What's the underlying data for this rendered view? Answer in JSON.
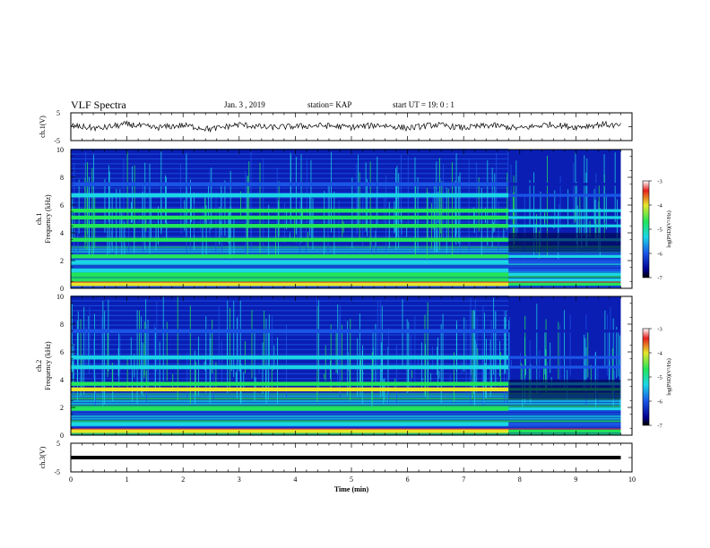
{
  "header": {
    "title": "VLF Spectra",
    "date": "Jan. 3 , 2019",
    "station": "station= KAP",
    "start": "start UT = 19: 0 : 1"
  },
  "chart_data": [
    {
      "type": "line",
      "panel": "ch1-waveform",
      "ylabel": "ch.1(V)",
      "ylim": [
        -5,
        5
      ],
      "yticks": [
        "5",
        "-5"
      ],
      "x": [
        0,
        0.5,
        1,
        1.5,
        2,
        2.5,
        3,
        3.5,
        4,
        4.5,
        5,
        5.5,
        6,
        6.5,
        7,
        7.5,
        8,
        8.5,
        9,
        9.5,
        9.8
      ],
      "values": [
        0.3,
        -0.6,
        0.9,
        -0.4,
        0.5,
        -0.9,
        0.8,
        -0.3,
        0.1,
        0.4,
        -0.2,
        0.6,
        -0.5,
        0.7,
        -0.4,
        0.5,
        -0.6,
        0.8,
        -0.1,
        0.9,
        0.2
      ]
    },
    {
      "type": "heatmap",
      "panel": "ch1-spectrogram",
      "ylabel": "ch.1 Frequency (kHz)",
      "ylim": [
        0,
        10
      ],
      "yticks": [
        "0",
        "2",
        "4",
        "6",
        "8",
        "10"
      ],
      "xlim": [
        0,
        10
      ],
      "data_end_min": 9.8,
      "change_at_min": 7.8,
      "colorbar": {
        "label": "log(PSD)(V²/Hz)",
        "range": [
          -7,
          -3
        ],
        "ticks": [
          "-3",
          "-4",
          "-5",
          "-6",
          "-7"
        ]
      },
      "bands_khz": [
        {
          "f": 0.3,
          "level": -3.6
        },
        {
          "f": 0.6,
          "level": -4.2
        },
        {
          "f": 1.0,
          "level": -3.8
        },
        {
          "f": 1.3,
          "level": -4.4
        },
        {
          "f": 1.9,
          "level": -4.7
        },
        {
          "f": 2.3,
          "level": -3.9
        },
        {
          "f": 3.5,
          "level": -4.3
        },
        {
          "f": 4.5,
          "level": -4.2
        },
        {
          "f": 5.1,
          "level": -3.8
        },
        {
          "f": 5.6,
          "level": -4.3
        },
        {
          "f": 6.7,
          "level": -4.5
        },
        {
          "f": 7.5,
          "level": -5.2
        }
      ]
    },
    {
      "type": "heatmap",
      "panel": "ch2-spectrogram",
      "ylabel": "ch.2 Frequency (kHz)",
      "ylim": [
        0,
        10
      ],
      "yticks": [
        "0",
        "2",
        "4",
        "6",
        "8",
        "10"
      ],
      "xlim": [
        0,
        10
      ],
      "data_end_min": 9.8,
      "change_at_min": 7.8,
      "colorbar": {
        "label": "log(PSD)(V²/Hz)",
        "range": [
          -7,
          -3
        ],
        "ticks": [
          "-3",
          "-4",
          "-5",
          "-6",
          "-7"
        ]
      },
      "bands_khz": [
        {
          "f": 0.3,
          "level": -3.5
        },
        {
          "f": 0.8,
          "level": -4.4
        },
        {
          "f": 1.9,
          "level": -4.0
        },
        {
          "f": 3.3,
          "level": -3.6
        },
        {
          "f": 3.7,
          "level": -4.0
        },
        {
          "f": 4.9,
          "level": -4.9
        },
        {
          "f": 5.6,
          "level": -4.8
        },
        {
          "f": 7.5,
          "level": -5.3
        }
      ]
    },
    {
      "type": "line",
      "panel": "ch3-waveform",
      "ylabel": "ch.3(V)",
      "ylim": [
        -5,
        5
      ],
      "yticks": [
        "5",
        "-5"
      ],
      "x": [
        0,
        9.8
      ],
      "values": [
        0,
        0
      ]
    }
  ],
  "xaxis": {
    "label": "Time (min)",
    "ticks": [
      "0",
      "1",
      "2",
      "3",
      "4",
      "5",
      "6",
      "7",
      "8",
      "9",
      "10"
    ]
  },
  "colors": {
    "bg_blue": "#0a1eb4",
    "blue": "#1a55e6",
    "cyan": "#1bd6e6",
    "green": "#22e65a",
    "yellow": "#e6e62a",
    "red": "#e62020"
  }
}
